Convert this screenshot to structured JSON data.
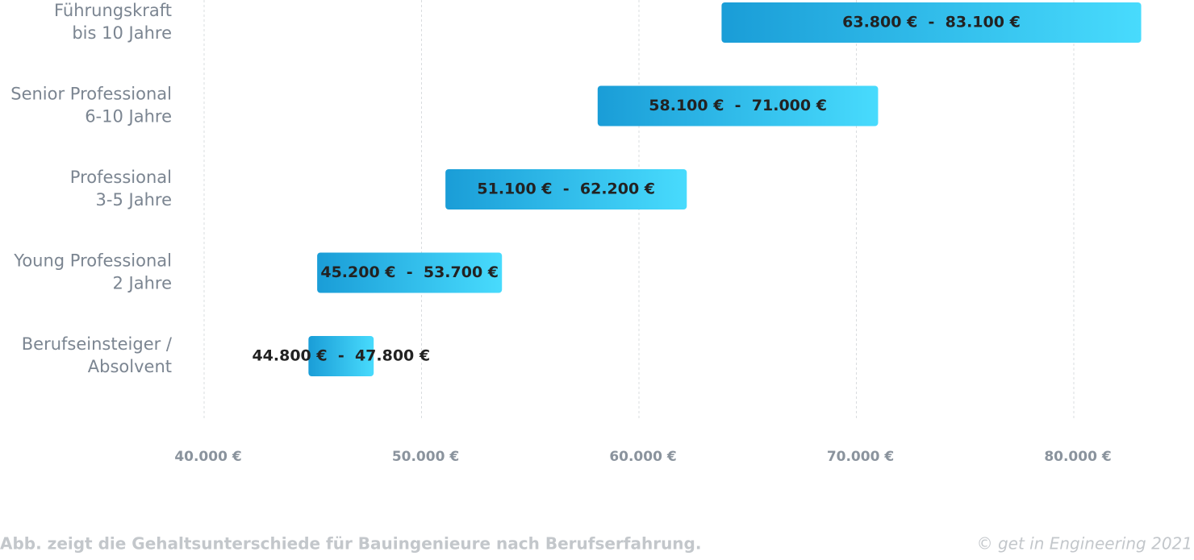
{
  "chart_data": {
    "type": "range-bar",
    "categories": [
      "Führungskraft\nbis 10 Jahre",
      "Senior Professional\n6-10 Jahre",
      "Professional\n3-5 Jahre",
      "Young Professional\n2 Jahre",
      "Berufseinsteiger /\nAbsolvent"
    ],
    "low": [
      63800,
      58100,
      51100,
      45200,
      44800
    ],
    "high": [
      83100,
      71000,
      62200,
      53700,
      47800
    ],
    "value_labels": [
      "63.800 €  -  83.100 €",
      "58.100 €  -  71.000 €",
      "51.100 €  -  62.200 €",
      "45.200 €  -  53.700 €",
      "44.800 €  -  47.800 €"
    ],
    "colors": [
      "#1a9dd7",
      "#48dbfd"
    ],
    "xlim": [
      40000,
      80000
    ],
    "xticks": [
      {
        "value": 40000,
        "label": "40.000 €"
      },
      {
        "value": 50000,
        "label": "50.000 €"
      },
      {
        "value": 60000,
        "label": "60.000 €"
      },
      {
        "value": 70000,
        "label": "70.000 €"
      },
      {
        "value": 80000,
        "label": "80.000 €"
      }
    ],
    "grid": true,
    "caption": "Abb. zeigt die Gehaltsunterschiede für Bauingenieure nach Berufserfahrung.",
    "source": "© get in Engineering 2021"
  }
}
